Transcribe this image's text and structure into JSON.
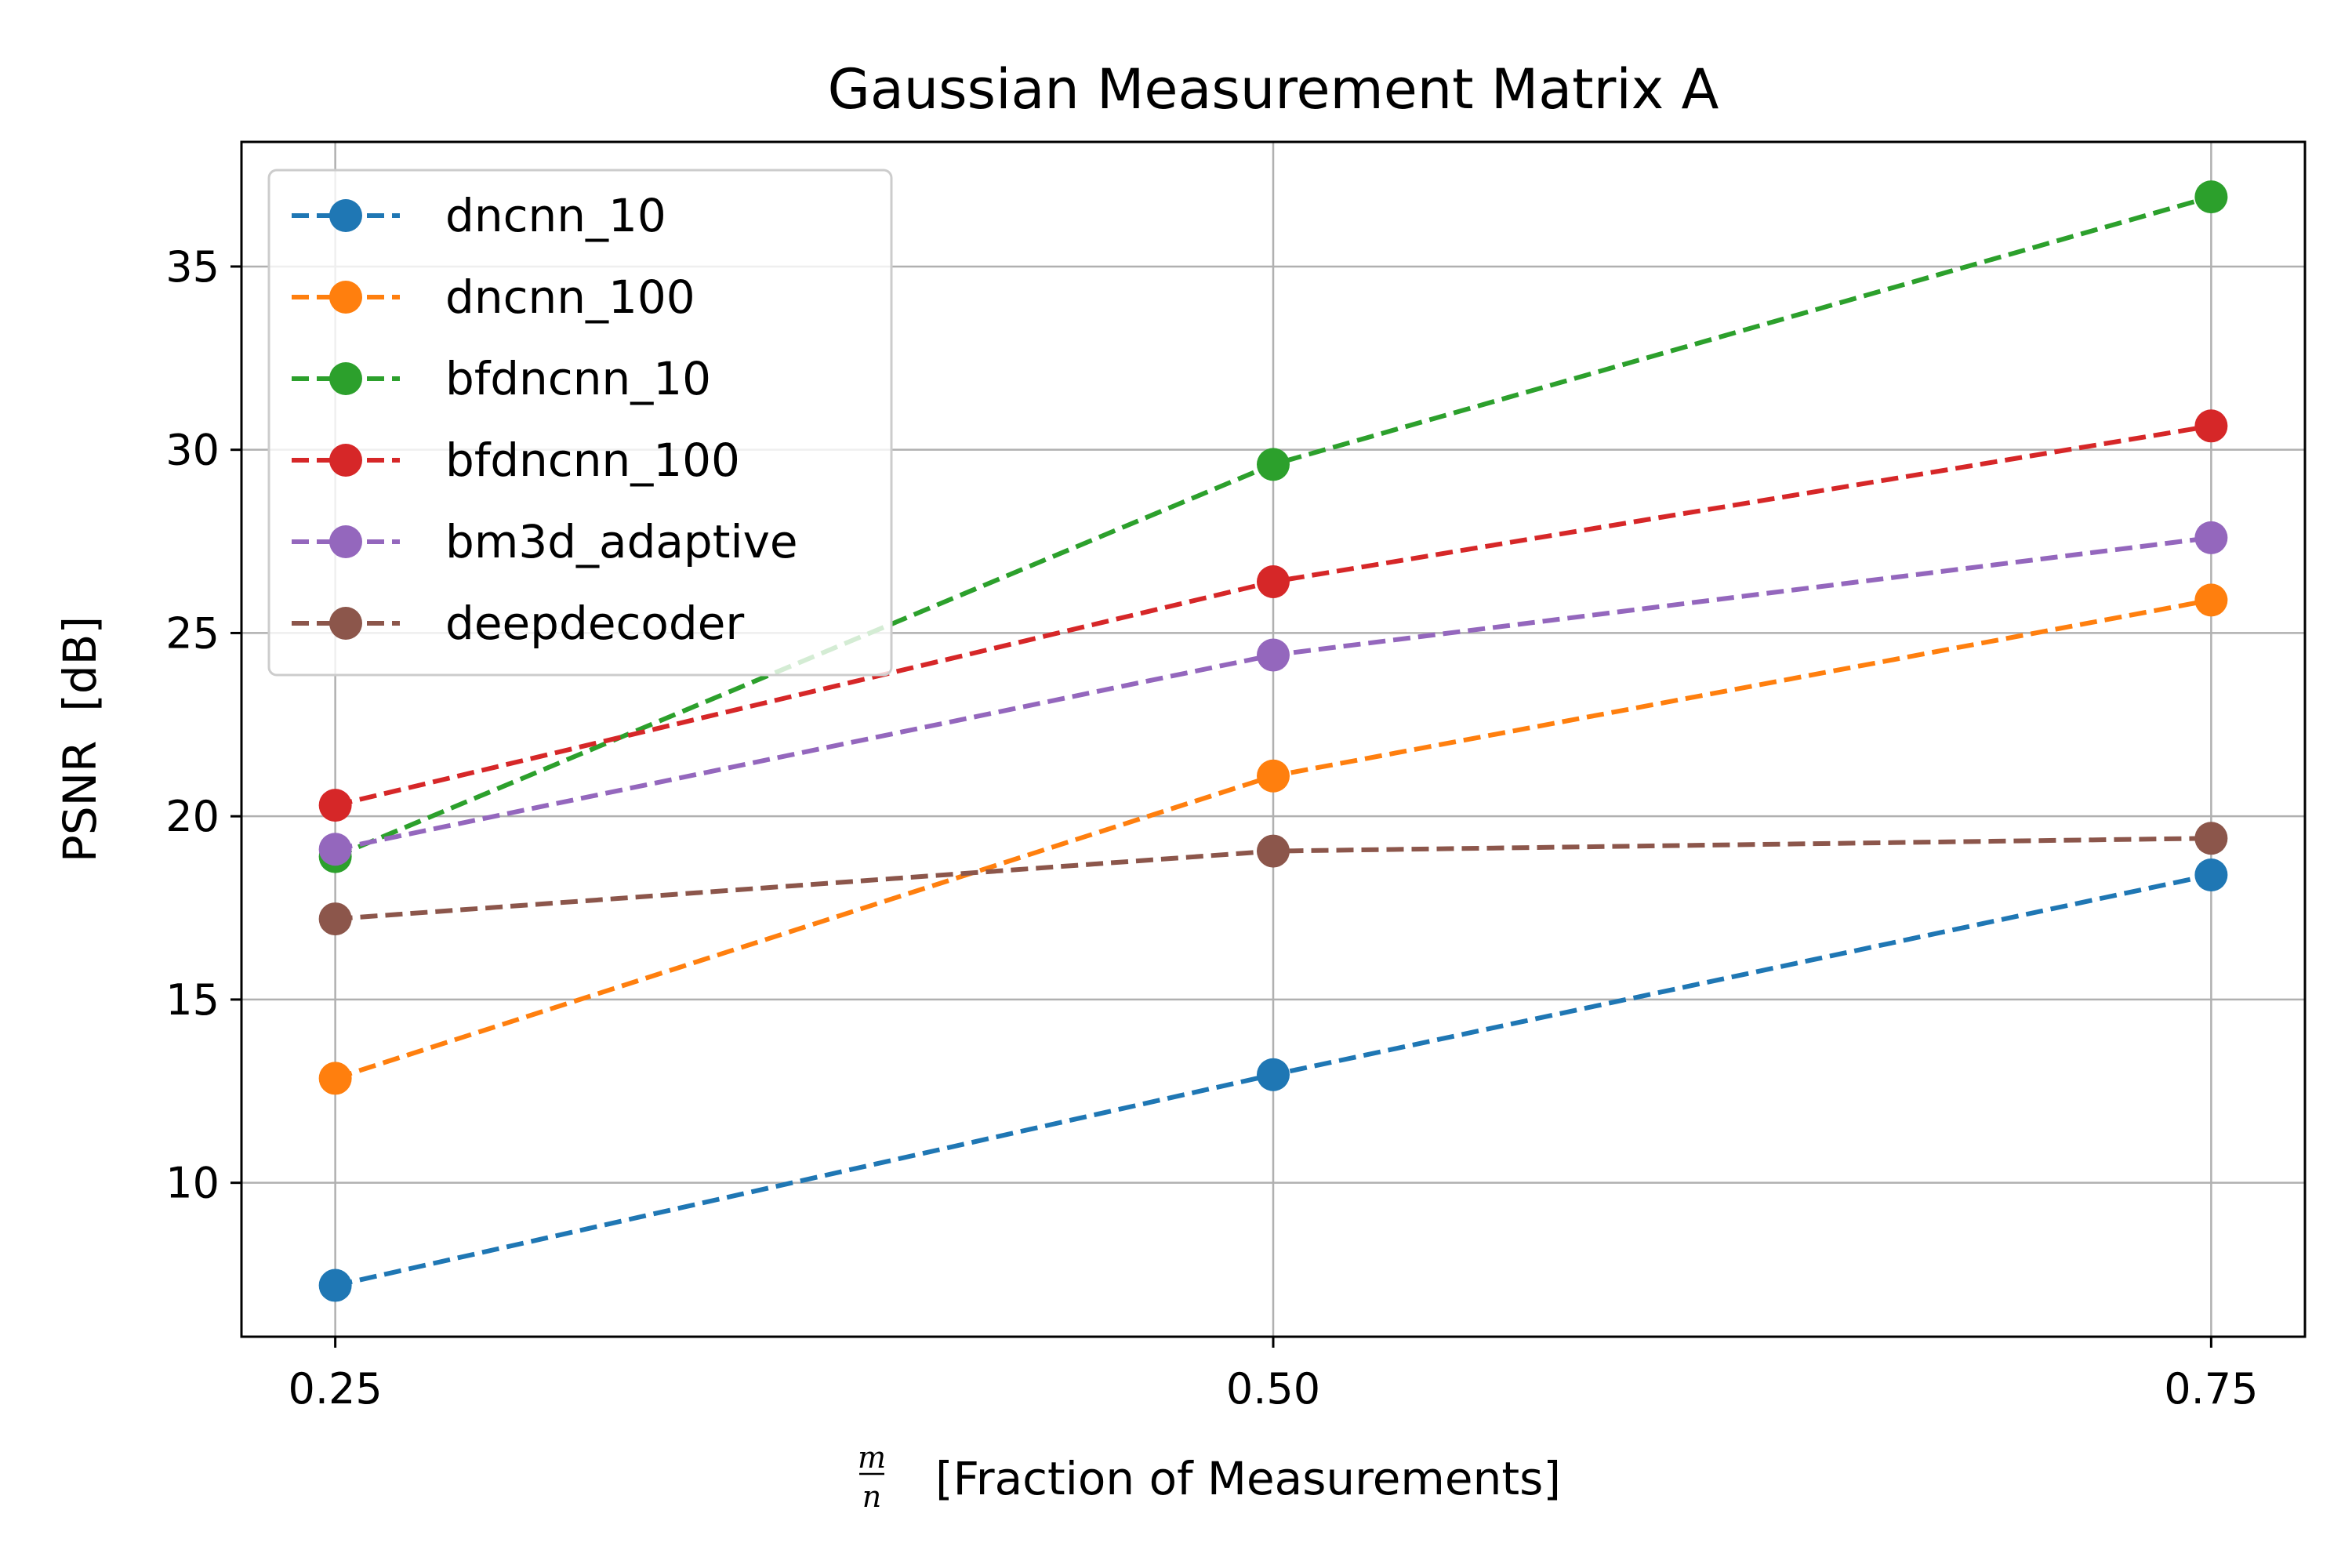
{
  "chart_data": {
    "type": "line",
    "title": "Gaussian Measurement Matrix A",
    "xlabel_fraction": {
      "numerator": "m",
      "denominator": "n"
    },
    "xlabel": "[Fraction of Measurements]",
    "ylabel": "PSNR  [dB]",
    "x": [
      0.25,
      0.5,
      0.75
    ],
    "x_tick_labels": [
      "0.25",
      "0.50",
      "0.75"
    ],
    "xlim": [
      0.225,
      0.775
    ],
    "y_ticks": [
      10,
      15,
      20,
      25,
      30,
      35
    ],
    "y_tick_labels": [
      "10",
      "15",
      "20",
      "25",
      "30",
      "35"
    ],
    "ylim": [
      5.8,
      38.4
    ],
    "grid": true,
    "legend_position": "upper-left",
    "line_style": "dashed",
    "marker": "circle",
    "series": [
      {
        "name": "dncnn_10",
        "color": "#1f77b4",
        "values": [
          7.2,
          12.95,
          18.4
        ]
      },
      {
        "name": "dncnn_100",
        "color": "#ff7f0e",
        "values": [
          12.85,
          21.1,
          25.9
        ]
      },
      {
        "name": "bfdncnn_10",
        "color": "#2ca02c",
        "values": [
          18.9,
          29.6,
          36.9
        ]
      },
      {
        "name": "bfdncnn_100",
        "color": "#d62728",
        "values": [
          20.3,
          26.4,
          30.65
        ]
      },
      {
        "name": "bm3d_adaptive",
        "color": "#9467bd",
        "values": [
          19.1,
          24.4,
          27.6
        ]
      },
      {
        "name": "deepdecoder",
        "color": "#8c564b",
        "values": [
          17.2,
          19.05,
          19.4
        ]
      }
    ]
  }
}
